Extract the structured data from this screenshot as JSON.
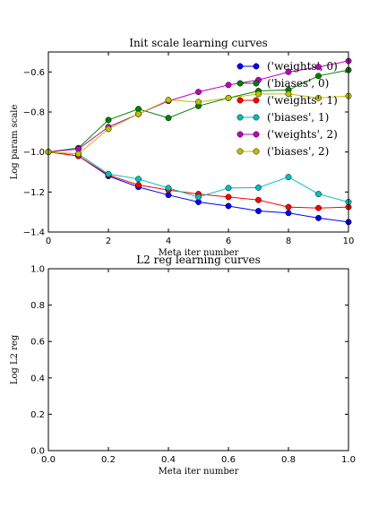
{
  "chart_data": [
    {
      "type": "line",
      "title": "Init scale learning curves",
      "xlabel": "Meta iter number",
      "ylabel": "Log param scale",
      "xlim": [
        0,
        10
      ],
      "ylim": [
        -1.4,
        -0.5
      ],
      "xticks": [
        0,
        2,
        4,
        6,
        8,
        10
      ],
      "yticks": [
        -1.4,
        -1.2,
        -1.0,
        -0.8,
        -0.6
      ],
      "ytick_labels": [
        "−1.4",
        "−1.2",
        "−1.0",
        "−0.8",
        "−0.6"
      ],
      "legend": "top-right",
      "grid": false,
      "x": [
        0,
        1,
        2,
        3,
        4,
        5,
        6,
        7,
        8,
        9,
        10
      ],
      "series": [
        {
          "name": "('weights', 0)",
          "color": "#0000ff",
          "values": [
            -1.0,
            -1.02,
            -1.12,
            -1.175,
            -1.215,
            -1.25,
            -1.27,
            -1.295,
            -1.305,
            -1.33,
            -1.35
          ]
        },
        {
          "name": "('biases', 0)",
          "color": "#008000",
          "values": [
            -1.0,
            -0.98,
            -0.84,
            -0.785,
            -0.83,
            -0.77,
            -0.73,
            -0.695,
            -0.69,
            -0.62,
            -0.59
          ]
        },
        {
          "name": "('weights', 1)",
          "color": "#ff0000",
          "values": [
            -1.0,
            -1.02,
            -1.115,
            -1.165,
            -1.19,
            -1.21,
            -1.225,
            -1.24,
            -1.275,
            -1.28,
            -1.275
          ]
        },
        {
          "name": "('biases', 1)",
          "color": "#00bfbf",
          "values": [
            -1.0,
            -1.01,
            -1.11,
            -1.135,
            -1.18,
            -1.225,
            -1.18,
            -1.178,
            -1.125,
            -1.21,
            -1.25
          ]
        },
        {
          "name": "('weights', 2)",
          "color": "#bf00bf",
          "values": [
            -1.0,
            -0.985,
            -0.875,
            -0.81,
            -0.745,
            -0.7,
            -0.665,
            -0.64,
            -0.6,
            -0.575,
            -0.545
          ]
        },
        {
          "name": "('biases', 2)",
          "color": "#bfbf00",
          "values": [
            -1.0,
            -1.01,
            -0.885,
            -0.81,
            -0.74,
            -0.75,
            -0.73,
            -0.71,
            -0.71,
            -0.73,
            -0.72
          ]
        }
      ]
    },
    {
      "type": "line",
      "title": "L2 reg learning curves",
      "xlabel": "Meta iter number",
      "ylabel": "Log L2 reg",
      "xlim": [
        0.0,
        1.0
      ],
      "ylim": [
        0.0,
        1.0
      ],
      "xticks": [
        0.0,
        0.2,
        0.4,
        0.6,
        0.8,
        1.0
      ],
      "yticks": [
        0.0,
        0.2,
        0.4,
        0.6,
        0.8,
        1.0
      ],
      "xtick_labels": [
        "0.0",
        "0.2",
        "0.4",
        "0.6",
        "0.8",
        "1.0"
      ],
      "ytick_labels": [
        "0.0",
        "0.2",
        "0.4",
        "0.6",
        "0.8",
        "1.0"
      ],
      "grid": false,
      "series": []
    }
  ]
}
